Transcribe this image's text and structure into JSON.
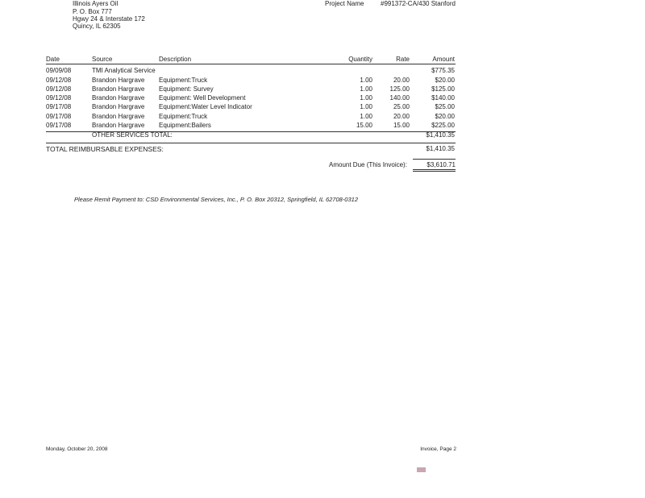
{
  "client": {
    "name": "Illinois Ayers Oil",
    "address1": "P. O. Box 777",
    "address2": "Hgwy 24 & Interstate 172",
    "city": "Quincy, IL 62305"
  },
  "project": {
    "label": "Project Name",
    "value": "#991372-CA/430 Stanford"
  },
  "table": {
    "headers": {
      "date": "Date",
      "source": "Source",
      "description": "Description",
      "quantity": "Quantity",
      "rate": "Rate",
      "amount": "Amount"
    },
    "rows": [
      {
        "date": "09/09/08",
        "source": "TMI Analytical Service",
        "description": "",
        "quantity": "",
        "rate": "",
        "amount": "$775.35"
      },
      {
        "date": "09/12/08",
        "source": "Brandon Hargrave",
        "description": "Equipment:Truck",
        "quantity": "1.00",
        "rate": "20.00",
        "amount": "$20.00"
      },
      {
        "date": "09/12/08",
        "source": "Brandon Hargrave",
        "description": "Equipment: Survey",
        "quantity": "1.00",
        "rate": "125.00",
        "amount": "$125.00"
      },
      {
        "date": "09/12/08",
        "source": "Brandon Hargrave",
        "description": "Equipment: Well Development",
        "quantity": "1.00",
        "rate": "140.00",
        "amount": "$140.00"
      },
      {
        "date": "09/17/08",
        "source": "Brandon Hargrave",
        "description": "Equipment:Water Level Indicator",
        "quantity": "1.00",
        "rate": "25.00",
        "amount": "$25.00"
      },
      {
        "date": "09/17/08",
        "source": "Brandon Hargrave",
        "description": "Equipment:Truck",
        "quantity": "1.00",
        "rate": "20.00",
        "amount": "$20.00"
      },
      {
        "date": "09/17/08",
        "source": "Brandon Hargrave",
        "description": "Equipment:Bailers",
        "quantity": "15.00",
        "rate": "15.00",
        "amount": "$225.00"
      }
    ],
    "other_total_label": "OTHER SERVICES TOTAL:",
    "other_total": "$1,410.35",
    "reimb_label": "TOTAL REIMBURSABLE EXPENSES:",
    "reimb_total": "$1,410.35"
  },
  "amount_due": {
    "label": "Amount Due (This Invoice):",
    "value": "$3,610.71"
  },
  "remit": "Please Remit Payment to: CSD Environmental Services, Inc., P. O. Box 20312, Springfield, IL 62708-0312",
  "footer": {
    "date": "Monday, October 20, 2008",
    "page": "Invoice, Page 2"
  }
}
